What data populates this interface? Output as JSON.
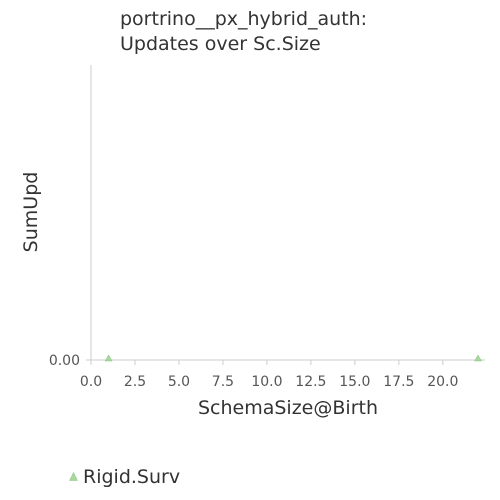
{
  "chart_data": {
    "type": "scatter",
    "title_lines": [
      "portrino__px_hybrid_auth:",
      "Updates over Sc.Size"
    ],
    "xlabel": "SchemaSize@Birth",
    "ylabel": "SumUpd",
    "xlim": [
      0,
      22
    ],
    "x_ticks": [
      0,
      2.5,
      5,
      7.5,
      10,
      12.5,
      15,
      17.5,
      20
    ],
    "x_tick_labels": [
      "0.0",
      "2.5",
      "5.0",
      "7.5",
      "10.0",
      "12.5",
      "15.0",
      "17.5",
      "20.0"
    ],
    "y_ticks": [
      0
    ],
    "y_tick_labels": [
      "0.00"
    ],
    "grid": false,
    "legend_position": "bottom-left",
    "series": [
      {
        "name": "Rigid.Surv",
        "marker": "triangle",
        "color": "#a8d8a0",
        "points": [
          {
            "x": 1,
            "y": 0
          },
          {
            "x": 22,
            "y": 0
          }
        ]
      }
    ]
  }
}
